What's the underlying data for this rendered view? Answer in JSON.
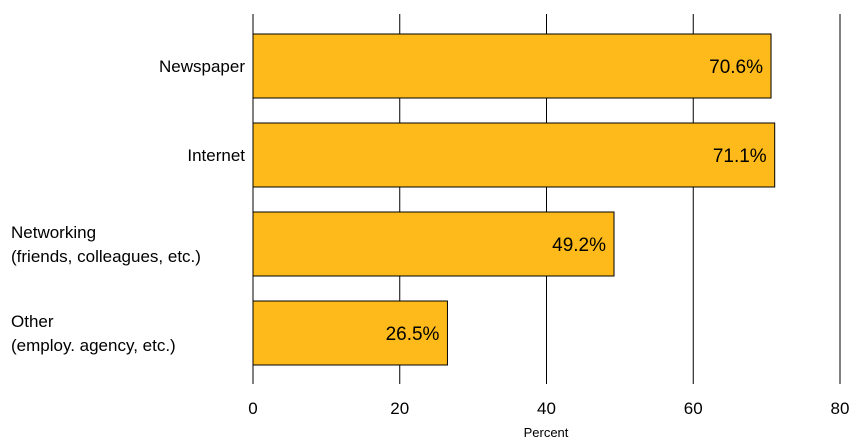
{
  "chart_data": {
    "type": "bar",
    "orientation": "horizontal",
    "categories": [
      [
        "Newspaper"
      ],
      [
        "Internet"
      ],
      [
        "Networking",
        "(friends, colleagues, etc.)"
      ],
      [
        "Other",
        "(employ. agency, etc.)"
      ]
    ],
    "values": [
      70.6,
      71.1,
      49.2,
      26.5
    ],
    "data_labels": [
      "70.6%",
      "71.1%",
      "49.2%",
      "26.5%"
    ],
    "xlabel": "Percent",
    "xlim": [
      0,
      80
    ],
    "xticks": [
      "0",
      "20",
      "40",
      "60",
      "80"
    ],
    "grid": true,
    "colors": {
      "bar": "#FDBA1A",
      "gridline": "#000000",
      "text": "#000000"
    }
  }
}
